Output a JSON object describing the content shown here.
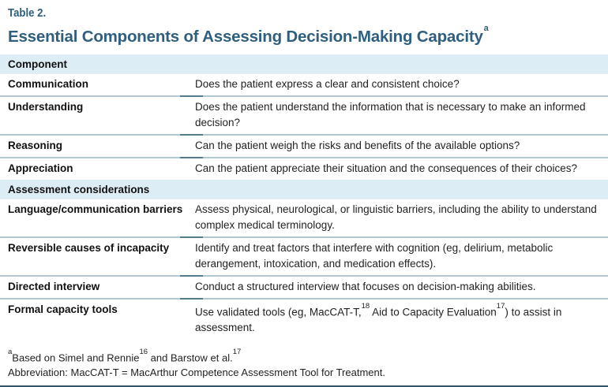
{
  "page": {
    "eyebrow": "Table 2.",
    "title": "Essential Components of Assessing Decision-Making Capacity",
    "title_sup": "a"
  },
  "table": {
    "header": "Component",
    "rows_components": [
      {
        "label": "Communication",
        "desc": "Does the patient express a clear and consistent choice?"
      },
      {
        "label": "Understanding",
        "desc": "Does the patient understand the information that is necessary to make an informed decision?"
      },
      {
        "label": "Reasoning",
        "desc": "Can the patient weigh the risks and benefits of the available options?"
      },
      {
        "label": "Appreciation",
        "desc": "Can the patient appreciate their situation and the consequences of their choices?"
      }
    ],
    "section2": "Assessment considerations",
    "rows_considerations": [
      {
        "label": "Language/communication barriers",
        "desc": "Assess physical, neurological, or linguistic barriers, including the ability to understand complex medical terminology."
      },
      {
        "label": "Reversible causes of incapacity",
        "desc": "Identify and treat factors that interfere with cognition (eg, delirium, metabolic derangement, intoxication, and medication effects)."
      },
      {
        "label": "Directed interview",
        "desc": "Conduct a structured interview that focuses on decision-making abilities."
      },
      {
        "label": "Formal capacity tools",
        "desc_parts": [
          "Use validated tools (eg, MacCAT-T,",
          "18",
          " Aid to Capacity Evaluation",
          "17",
          ") to assist in assessment."
        ]
      }
    ]
  },
  "footnotes": {
    "note_sup": "a",
    "note_parts": [
      "Based on Simel and Rennie",
      "16",
      " and Barstow et al.",
      "17"
    ],
    "abbreviation": "Abbreviation: MacCAT-T = MacArthur Competence Assessment Tool for Treatment."
  },
  "colors": {
    "title_blue": "#2f5f7e",
    "section_bar_bg": "#ddedf6",
    "divider_light": "#b3c7d1",
    "divider_dark": "#557c8a",
    "bottom_rule": "#2d5a71",
    "body_text": "#222222"
  }
}
